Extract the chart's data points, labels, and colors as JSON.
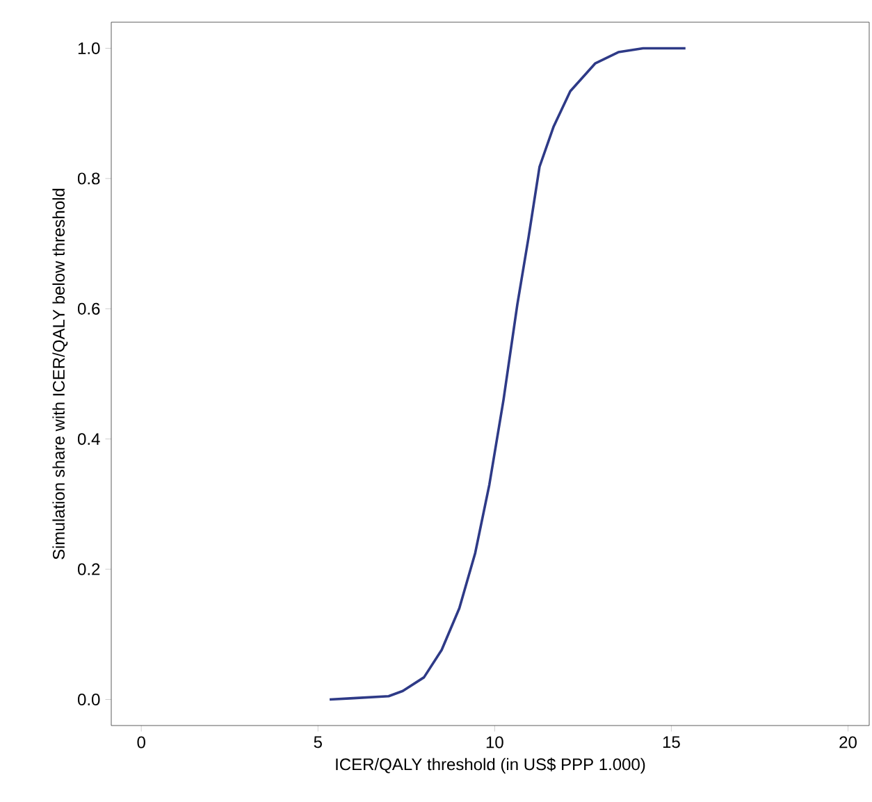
{
  "chart_data": {
    "type": "line",
    "xlabel": "ICER/QALY threshold (in US$ PPP 1.000)",
    "ylabel": "Simulation share with ICER/QALY below threshold",
    "x": [
      5.33,
      6.0,
      7.0,
      7.4,
      8.0,
      8.5,
      9.0,
      9.45,
      9.85,
      10.25,
      10.64,
      10.96,
      11.27,
      11.67,
      12.14,
      12.85,
      13.5,
      14.2,
      15.4
    ],
    "series": [
      {
        "color": "#2e3a87",
        "values": [
          0.0,
          0.002,
          0.005,
          0.013,
          0.034,
          0.076,
          0.14,
          0.225,
          0.33,
          0.46,
          0.606,
          0.71,
          0.818,
          0.88,
          0.934,
          0.977,
          0.994,
          1.0,
          1.0
        ]
      }
    ],
    "xlim": [
      -0.85,
      20.6
    ],
    "ylim": [
      -0.04,
      1.04
    ],
    "xticks": [
      0,
      5,
      10,
      15,
      20
    ],
    "yticks": [
      {
        "value": 0,
        "label": "0.0"
      },
      {
        "value": 0.2,
        "label": "0.2"
      },
      {
        "value": 0.4,
        "label": "0.4"
      },
      {
        "value": 0.6,
        "label": "0.6"
      },
      {
        "value": 0.8,
        "label": "0.8"
      },
      {
        "value": 1.0,
        "label": "1.0"
      }
    ],
    "grid": false,
    "marker": "none",
    "line_style": "solid"
  }
}
